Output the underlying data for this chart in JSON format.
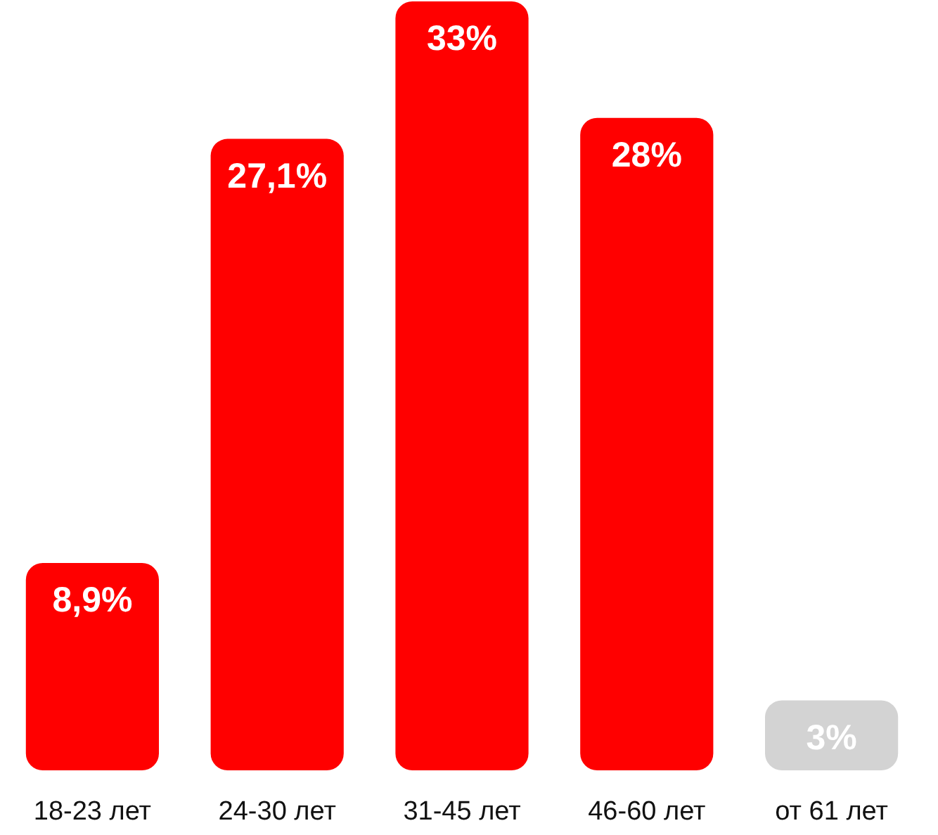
{
  "chart_data": {
    "type": "bar",
    "categories": [
      "18-23 лет",
      "24-30 лет",
      "31-45 лет",
      "46-60 лет",
      "от 61 лет"
    ],
    "values": [
      8.9,
      27.1,
      33,
      28,
      3
    ],
    "colors": [
      "#ff0000",
      "#ff0000",
      "#ff0000",
      "#ff0000",
      "#d3d3d3"
    ],
    "value_labels": [
      "8,9%",
      "27,1%",
      "33%",
      "28%",
      "3%"
    ]
  }
}
